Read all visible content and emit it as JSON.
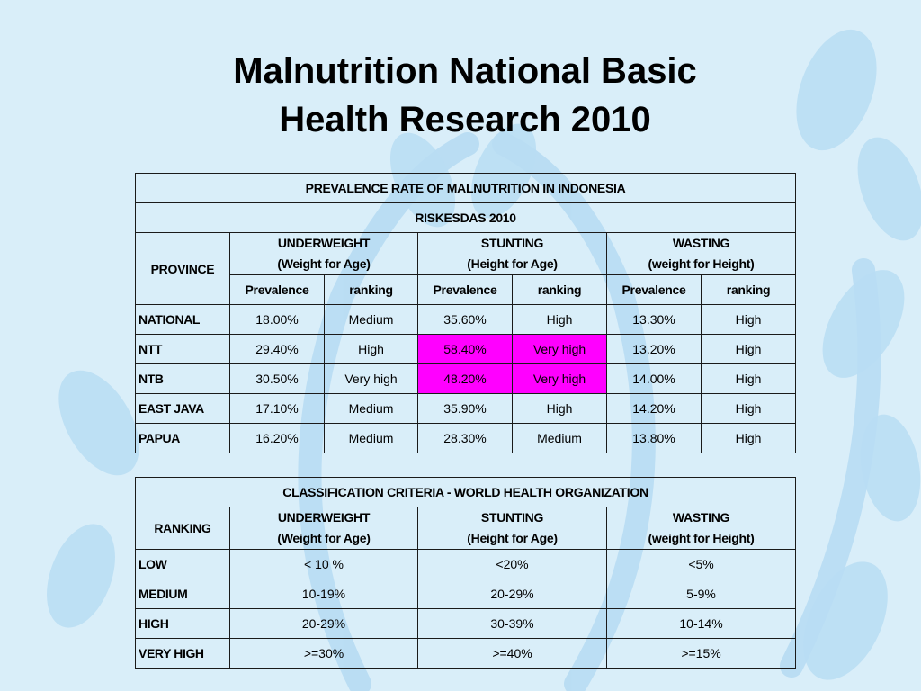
{
  "slide_title": [
    "Malnutrition National Basic",
    "Health Research 2010"
  ],
  "prevalence_table": {
    "title": "PREVALENCE RATE OF MALNUTRITION IN INDONESIA",
    "subtitle": "RISKESDAS 2010",
    "province_header": "PROVINCE",
    "groups": [
      {
        "name": "UNDERWEIGHT",
        "sub": "(Weight for Age)"
      },
      {
        "name": "STUNTING",
        "sub": "(Height for Age)"
      },
      {
        "name": "WASTING",
        "sub": "(weight for Height)"
      }
    ],
    "sub_headers": [
      "Prevalence",
      "ranking",
      "Prevalence",
      "ranking",
      "Prevalence",
      "ranking"
    ],
    "rows": [
      {
        "province": "NATIONAL",
        "values": [
          "18.00%",
          "Medium",
          "35.60%",
          "High",
          "13.30%",
          "High"
        ]
      },
      {
        "province": "NTT",
        "values": [
          "29.40%",
          "High",
          "58.40%",
          "Very high",
          "13.20%",
          "High"
        ]
      },
      {
        "province": "NTB",
        "values": [
          "30.50%",
          "Very high",
          "48.20%",
          "Very high",
          "14.00%",
          "High"
        ]
      },
      {
        "province": "EAST JAVA",
        "values": [
          "17.10%",
          "Medium",
          "35.90%",
          "High",
          "14.20%",
          "High"
        ]
      },
      {
        "province": "PAPUA",
        "values": [
          "16.20%",
          "Medium",
          "28.30%",
          "Medium",
          "13.80%",
          "High"
        ]
      }
    ],
    "highlight_color": "#ff00ff"
  },
  "classification_table": {
    "title": "CLASSIFICATION CRITERIA - WORLD HEALTH ORGANIZATION",
    "ranking_header": "RANKING",
    "groups": [
      {
        "name": "UNDERWEIGHT",
        "sub": "(Weight for Age)"
      },
      {
        "name": "STUNTING",
        "sub": "(Height for Age)"
      },
      {
        "name": "WASTING",
        "sub": "(weight for Height)"
      }
    ],
    "rows": [
      {
        "ranking": "LOW",
        "values": [
          "< 10 %",
          "<20%",
          "<5%"
        ]
      },
      {
        "ranking": "MEDIUM",
        "values": [
          "10-19%",
          "20-29%",
          "5-9%"
        ]
      },
      {
        "ranking": "HIGH",
        "values": [
          "20-29%",
          "30-39%",
          "10-14%"
        ]
      },
      {
        "ranking": "VERY HIGH",
        "values": [
          ">=30%",
          ">=40%",
          ">=15%"
        ]
      }
    ]
  },
  "colors": {
    "background": "#d9eef9",
    "emblem": "#a9d3ef",
    "border": "#1a1a1a"
  }
}
